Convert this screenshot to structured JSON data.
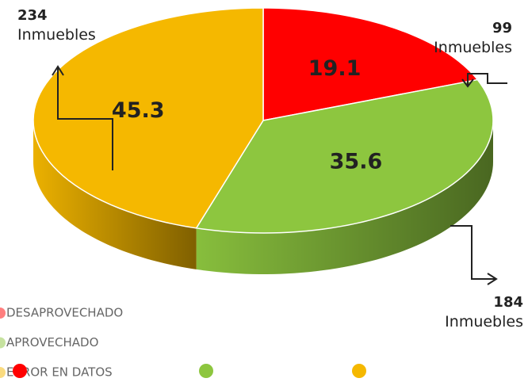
{
  "chart_data": {
    "type": "pie",
    "categories": [
      "DESAPROVECHADO",
      "APROVECHADO",
      "ERROR EN DATOS"
    ],
    "values": [
      19.1,
      35.6,
      45.3
    ],
    "colors": [
      "#ff0000",
      "#8dc63f",
      "#f5b800"
    ],
    "counts": [
      99,
      184,
      234
    ],
    "count_unit": "Inmuebles"
  }
}
